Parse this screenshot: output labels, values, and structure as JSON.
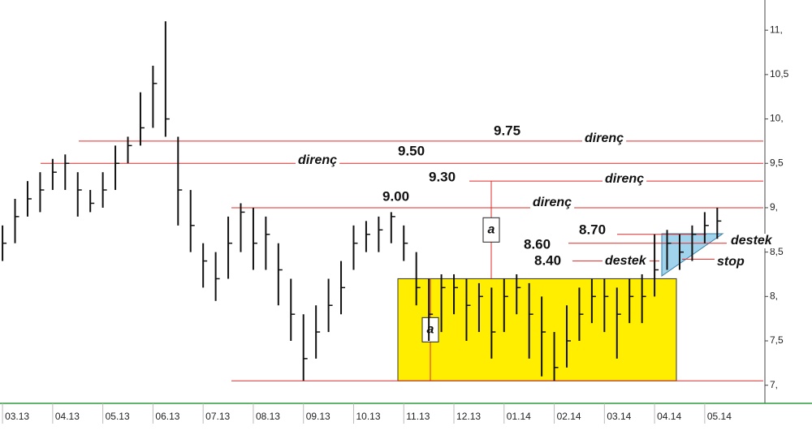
{
  "chart_data": {
    "type": "hlc",
    "x": [
      0,
      0.25,
      0.5,
      0.75,
      1,
      1.25,
      1.5,
      1.75,
      2,
      2.25,
      2.5,
      2.75,
      3,
      3.25,
      3.5,
      3.75,
      4,
      4.25,
      4.5,
      4.75,
      5,
      5.25,
      5.5,
      5.75,
      6,
      6.25,
      6.5,
      6.75,
      7,
      7.25,
      7.5,
      7.75,
      8,
      8.25,
      8.5,
      8.75,
      9,
      9.25,
      9.5,
      9.75,
      10,
      10.25,
      10.5,
      10.75,
      11,
      11.25,
      11.5,
      11.75,
      12,
      12.25,
      12.5,
      12.75,
      13,
      13.25,
      13.5,
      13.75,
      14,
      14.25
    ],
    "high": [
      8.8,
      9.1,
      9.3,
      9.4,
      9.55,
      9.6,
      9.4,
      9.2,
      9.4,
      9.7,
      9.8,
      10.3,
      10.6,
      11.1,
      9.8,
      9.2,
      8.6,
      8.5,
      8.9,
      9.05,
      9.0,
      8.9,
      8.6,
      8.2,
      7.8,
      7.9,
      8.2,
      8.4,
      8.8,
      8.85,
      8.9,
      8.95,
      8.8,
      8.5,
      8.2,
      8.25,
      8.25,
      8.2,
      8.15,
      8.1,
      8.2,
      8.25,
      8.15,
      8.0,
      7.6,
      7.9,
      8.1,
      8.2,
      8.2,
      8.1,
      8.2,
      8.25,
      8.7,
      8.75,
      8.7,
      8.8,
      8.95,
      9.0
    ],
    "low": [
      8.4,
      8.6,
      8.9,
      8.95,
      9.2,
      9.2,
      8.9,
      8.95,
      9.0,
      9.2,
      9.5,
      9.7,
      9.9,
      9.8,
      8.8,
      8.5,
      8.1,
      7.95,
      8.2,
      8.5,
      8.3,
      8.3,
      7.9,
      7.5,
      7.05,
      7.3,
      7.6,
      7.8,
      8.3,
      8.5,
      8.5,
      8.6,
      8.4,
      7.9,
      7.5,
      7.6,
      7.8,
      7.5,
      7.6,
      7.3,
      7.6,
      7.8,
      7.3,
      7.1,
      7.05,
      7.2,
      7.5,
      7.7,
      7.6,
      7.3,
      7.7,
      7.7,
      8.0,
      8.3,
      8.3,
      8.4,
      8.6,
      8.65
    ],
    "close": [
      8.6,
      8.9,
      9.1,
      9.2,
      9.4,
      9.5,
      9.2,
      9.05,
      9.2,
      9.5,
      9.7,
      9.9,
      10.4,
      10.0,
      9.2,
      8.8,
      8.4,
      8.2,
      8.6,
      8.95,
      8.6,
      8.7,
      8.3,
      7.8,
      7.3,
      7.6,
      7.9,
      8.1,
      8.6,
      8.7,
      8.75,
      8.9,
      8.6,
      8.1,
      7.8,
      8.1,
      8.1,
      7.9,
      8.0,
      7.6,
      8.0,
      8.1,
      7.8,
      7.6,
      7.2,
      7.5,
      7.8,
      8.0,
      8.0,
      7.8,
      8.0,
      8.0,
      8.3,
      8.6,
      8.5,
      8.7,
      8.8,
      8.85
    ],
    "color": "#111111",
    "xlim": [
      -0.05,
      15.2
    ],
    "xticks": [
      {
        "value": 0,
        "label": "03.13"
      },
      {
        "value": 1,
        "label": "04.13"
      },
      {
        "value": 2,
        "label": "05.13"
      },
      {
        "value": 3,
        "label": "06.13"
      },
      {
        "value": 4,
        "label": "07.13"
      },
      {
        "value": 5,
        "label": "08.13"
      },
      {
        "value": 6,
        "label": "09.13"
      },
      {
        "value": 7,
        "label": "10.13"
      },
      {
        "value": 8,
        "label": "11.13"
      },
      {
        "value": 9,
        "label": "12.13"
      },
      {
        "value": 10,
        "label": "01.14"
      },
      {
        "value": 11,
        "label": "02.14"
      },
      {
        "value": 12,
        "label": "03.14"
      },
      {
        "value": 13,
        "label": "04.14"
      },
      {
        "value": 14,
        "label": "05.14"
      }
    ],
    "ylim": [
      6.86,
      11.34
    ],
    "yticks": [
      {
        "value": 7,
        "label": "7,"
      },
      {
        "value": 7.5,
        "label": "7,5"
      },
      {
        "value": 8,
        "label": "8,"
      },
      {
        "value": 8.5,
        "label": "8,5"
      },
      {
        "value": 9,
        "label": "9,"
      },
      {
        "value": 9.5,
        "label": "9,5"
      },
      {
        "value": 10,
        "label": "10,"
      },
      {
        "value": 10.5,
        "label": "10,5"
      },
      {
        "value": 11,
        "label": "11,"
      }
    ],
    "level_color": "#e02a2a",
    "levels": [
      {
        "value": 9.75,
        "label": "9.75",
        "note": "direnç"
      },
      {
        "value": 9.5,
        "label": "9.50",
        "note": "direnç"
      },
      {
        "value": 9.3,
        "label": "9.30",
        "note": "direnç"
      },
      {
        "value": 9,
        "label": "9.00",
        "note": "direnç"
      },
      {
        "value": 8.7,
        "label": "8.70"
      },
      {
        "value": 8.6,
        "label": "8.60",
        "note": "destek"
      },
      {
        "value": 8.4,
        "label": "8.40",
        "note": "destek"
      },
      {
        "value": 8.42,
        "note": "stop"
      },
      {
        "value": 7.05
      }
    ],
    "range_box": {
      "from": 7.05,
      "to": 8.2,
      "color": "#ffee00"
    },
    "measures": [
      {
        "label": "a",
        "from": 9.3,
        "to": 8.2
      },
      {
        "label": "a",
        "from": 8.2,
        "to": 7.05
      }
    ]
  }
}
